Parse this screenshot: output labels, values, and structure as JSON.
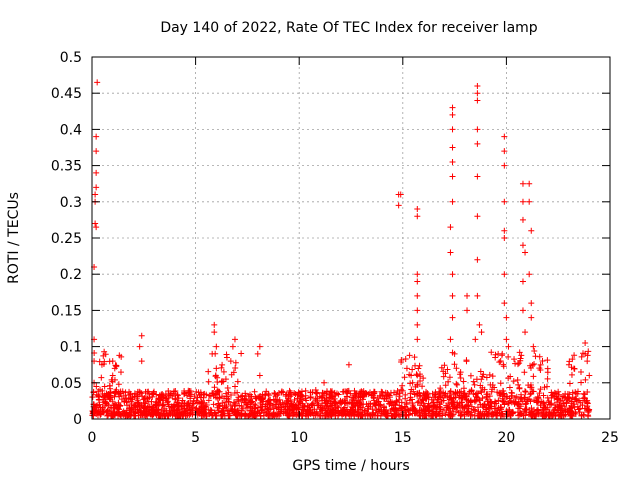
{
  "chart_data": {
    "type": "scatter",
    "title": "Day 140 of 2022, Rate Of TEC Index for receiver lamp",
    "xlabel": "GPS time / hours",
    "ylabel": "ROTI / TECUs",
    "xlim": [
      0,
      25
    ],
    "ylim": [
      0,
      0.5
    ],
    "x_ticks": [
      "0",
      "5",
      "10",
      "15",
      "20",
      "25"
    ],
    "y_ticks": [
      "0",
      "0.05",
      "0.1",
      "0.15",
      "0.2",
      "0.25",
      "0.3",
      "0.35",
      "0.4",
      "0.45",
      "0.5"
    ],
    "grid": true,
    "marker": "+",
    "color": "#ff0000",
    "series": [
      {
        "name": "ROTI",
        "points": [
          [
            0.1,
            0.02
          ],
          [
            0.1,
            0.05
          ],
          [
            0.1,
            0.08
          ],
          [
            0.1,
            0.11
          ],
          [
            0.1,
            0.21
          ],
          [
            0.15,
            0.27
          ],
          [
            0.15,
            0.3
          ],
          [
            0.2,
            0.34
          ],
          [
            0.2,
            0.37
          ],
          [
            0.2,
            0.39
          ],
          [
            0.25,
            0.465
          ],
          [
            0.2,
            0.265
          ],
          [
            0.15,
            0.31
          ],
          [
            0.2,
            0.32
          ],
          [
            1.0,
            0.06
          ],
          [
            1.0,
            0.08
          ],
          [
            1.1,
            0.07
          ],
          [
            2.3,
            0.1
          ],
          [
            2.4,
            0.115
          ],
          [
            2.4,
            0.08
          ],
          [
            5.8,
            0.09
          ],
          [
            5.9,
            0.12
          ],
          [
            6.0,
            0.1
          ],
          [
            5.9,
            0.13
          ],
          [
            6.0,
            0.07
          ],
          [
            6.7,
            0.08
          ],
          [
            6.8,
            0.1
          ],
          [
            6.9,
            0.11
          ],
          [
            8.0,
            0.09
          ],
          [
            8.1,
            0.1
          ],
          [
            8.1,
            0.06
          ],
          [
            10.8,
            0.04
          ],
          [
            11.2,
            0.05
          ],
          [
            12.4,
            0.075
          ],
          [
            14.8,
            0.31
          ],
          [
            14.8,
            0.295
          ],
          [
            14.9,
            0.31
          ],
          [
            15.2,
            0.07
          ],
          [
            15.4,
            0.06
          ],
          [
            15.7,
            0.28
          ],
          [
            15.7,
            0.29
          ],
          [
            15.7,
            0.2
          ],
          [
            15.7,
            0.19
          ],
          [
            15.7,
            0.17
          ],
          [
            15.7,
            0.15
          ],
          [
            15.7,
            0.13
          ],
          [
            15.7,
            0.11
          ],
          [
            17.4,
            0.43
          ],
          [
            17.4,
            0.42
          ],
          [
            17.4,
            0.4
          ],
          [
            17.4,
            0.375
          ],
          [
            17.4,
            0.355
          ],
          [
            17.4,
            0.335
          ],
          [
            17.4,
            0.3
          ],
          [
            17.3,
            0.265
          ],
          [
            17.3,
            0.23
          ],
          [
            17.4,
            0.2
          ],
          [
            17.4,
            0.17
          ],
          [
            17.4,
            0.14
          ],
          [
            17.3,
            0.11
          ],
          [
            17.5,
            0.09
          ],
          [
            18.1,
            0.17
          ],
          [
            18.1,
            0.15
          ],
          [
            18.6,
            0.46
          ],
          [
            18.6,
            0.45
          ],
          [
            18.6,
            0.44
          ],
          [
            18.6,
            0.4
          ],
          [
            18.6,
            0.38
          ],
          [
            18.6,
            0.335
          ],
          [
            18.6,
            0.28
          ],
          [
            18.6,
            0.22
          ],
          [
            18.6,
            0.17
          ],
          [
            18.7,
            0.13
          ],
          [
            18.8,
            0.12
          ],
          [
            18.5,
            0.11
          ],
          [
            19.9,
            0.39
          ],
          [
            19.9,
            0.37
          ],
          [
            19.9,
            0.35
          ],
          [
            19.9,
            0.3
          ],
          [
            19.9,
            0.26
          ],
          [
            19.9,
            0.25
          ],
          [
            19.9,
            0.2
          ],
          [
            19.9,
            0.16
          ],
          [
            20.0,
            0.14
          ],
          [
            20.0,
            0.11
          ],
          [
            20.1,
            0.1
          ],
          [
            19.8,
            0.09
          ],
          [
            20.8,
            0.325
          ],
          [
            20.8,
            0.3
          ],
          [
            20.8,
            0.275
          ],
          [
            20.8,
            0.24
          ],
          [
            20.9,
            0.23
          ],
          [
            20.8,
            0.19
          ],
          [
            20.8,
            0.15
          ],
          [
            20.9,
            0.12
          ],
          [
            21.1,
            0.325
          ],
          [
            21.1,
            0.3
          ],
          [
            21.2,
            0.26
          ],
          [
            21.1,
            0.2
          ],
          [
            21.2,
            0.16
          ],
          [
            21.2,
            0.14
          ],
          [
            21.3,
            0.1
          ],
          [
            23.8,
            0.105
          ],
          [
            23.8,
            0.09
          ],
          [
            23.9,
            0.08
          ],
          [
            23.6,
            0.065
          ],
          [
            24.0,
            0.06
          ]
        ],
        "baseline_band": {
          "x_range": [
            0.0,
            24.0
          ],
          "typical_y_range": [
            0.0,
            0.035
          ],
          "active_periods": [
            [
              0.0,
              1.5
            ],
            [
              5.5,
              7.2
            ],
            [
              14.9,
              16.0
            ],
            [
              16.8,
              22.0
            ],
            [
              23.0,
              24.0
            ]
          ],
          "active_max_y": 0.09
        }
      }
    ]
  }
}
